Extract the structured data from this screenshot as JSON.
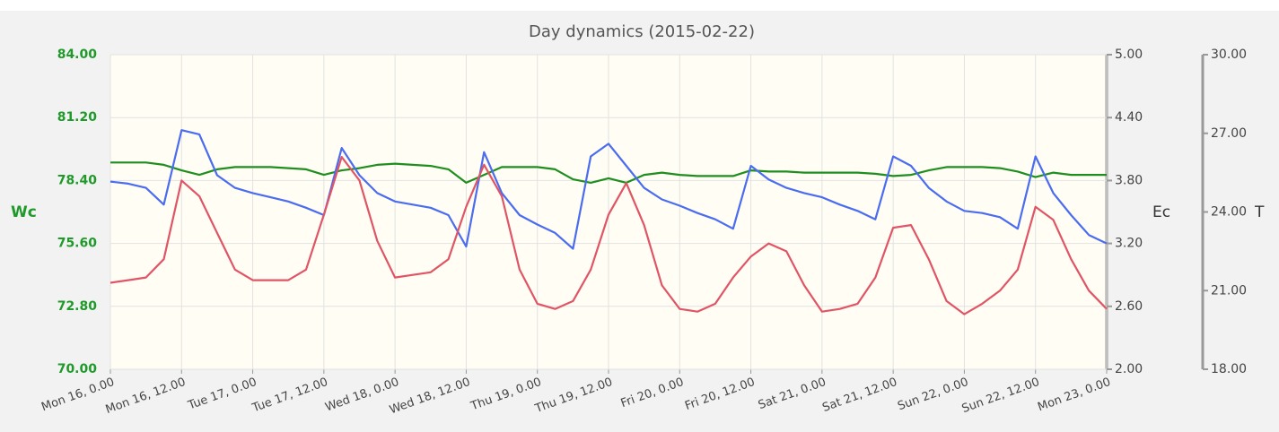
{
  "chart_data": {
    "type": "line",
    "title": "Day dynamics (2015-02-22)",
    "y_label": "Wc",
    "y2_label": "Ec",
    "y3_label": "T",
    "x": [
      0,
      3,
      6,
      9,
      12,
      15,
      18,
      21,
      24,
      27,
      30,
      33,
      36,
      39,
      42,
      45,
      48,
      51,
      54,
      57,
      60,
      63,
      66,
      69,
      72,
      75,
      78,
      81,
      84,
      87,
      90,
      93,
      96,
      99,
      102,
      105,
      108,
      111,
      114,
      117,
      120,
      123,
      126,
      129,
      132,
      135,
      138,
      141,
      144,
      147,
      150,
      153,
      156,
      159,
      162,
      165,
      168
    ],
    "xlim": [
      0,
      168
    ],
    "xticks": [
      {
        "value": 0,
        "label": "Mon 16, 0.00"
      },
      {
        "value": 12,
        "label": "Mon 16, 12.00"
      },
      {
        "value": 24,
        "label": "Tue 17, 0.00"
      },
      {
        "value": 36,
        "label": "Tue 17, 12.00"
      },
      {
        "value": 48,
        "label": "Wed 18, 0.00"
      },
      {
        "value": 60,
        "label": "Wed 18, 12.00"
      },
      {
        "value": 72,
        "label": "Thu 19, 0.00"
      },
      {
        "value": 84,
        "label": "Thu 19, 12.00"
      },
      {
        "value": 96,
        "label": "Fri 20, 0.00"
      },
      {
        "value": 108,
        "label": "Fri 20, 12.00"
      },
      {
        "value": 120,
        "label": "Sat 21, 0.00"
      },
      {
        "value": 132,
        "label": "Sat 21, 12.00"
      },
      {
        "value": 144,
        "label": "Sun 22, 0.00"
      },
      {
        "value": 156,
        "label": "Sun 22, 12.00"
      },
      {
        "value": 168,
        "label": "Mon 23, 0.00"
      }
    ],
    "ylim": [
      70,
      84
    ],
    "yticks": [
      {
        "value": 70,
        "label": "70.00"
      },
      {
        "value": 72.8,
        "label": "72.80"
      },
      {
        "value": 75.6,
        "label": "75.60"
      },
      {
        "value": 78.4,
        "label": "78.40"
      },
      {
        "value": 81.2,
        "label": "81.20"
      },
      {
        "value": 84,
        "label": "84.00"
      }
    ],
    "y2lim": [
      2,
      5
    ],
    "y2ticks": [
      {
        "value": 2,
        "label": "2.00"
      },
      {
        "value": 2.6,
        "label": "2.60"
      },
      {
        "value": 3.2,
        "label": "3.20"
      },
      {
        "value": 3.8,
        "label": "3.80"
      },
      {
        "value": 4.4,
        "label": "4.40"
      },
      {
        "value": 5,
        "label": "5.00"
      }
    ],
    "y3lim": [
      18,
      30
    ],
    "y3ticks": [
      {
        "value": 18,
        "label": "18.00"
      },
      {
        "value": 21,
        "label": "21.00"
      },
      {
        "value": 24,
        "label": "24.00"
      },
      {
        "value": 27,
        "label": "27.00"
      },
      {
        "value": 30,
        "label": "30.00"
      }
    ],
    "grid": true,
    "series": [
      {
        "color": "#1e8f1e",
        "axis": "y",
        "values": [
          79.2,
          79.2,
          79.2,
          79.1,
          78.85,
          78.65,
          78.9,
          79.0,
          79.0,
          79.0,
          78.95,
          78.9,
          78.65,
          78.85,
          78.95,
          79.1,
          79.15,
          79.1,
          79.05,
          78.9,
          78.3,
          78.65,
          79.0,
          79.0,
          79.0,
          78.9,
          78.45,
          78.3,
          78.5,
          78.3,
          78.65,
          78.75,
          78.65,
          78.6,
          78.6,
          78.6,
          78.85,
          78.8,
          78.8,
          78.75,
          78.75,
          78.75,
          78.75,
          78.7,
          78.6,
          78.65,
          78.85,
          79.0,
          79.0,
          79.0,
          78.95,
          78.8,
          78.55,
          78.75,
          78.65,
          78.65,
          78.65
        ]
      },
      {
        "color": "#4a6cf0",
        "axis": "y2",
        "values": [
          3.79,
          3.77,
          3.73,
          3.57,
          4.28,
          4.24,
          3.85,
          3.73,
          3.68,
          3.64,
          3.6,
          3.54,
          3.47,
          4.11,
          3.85,
          3.68,
          3.6,
          3.57,
          3.54,
          3.47,
          3.17,
          4.07,
          3.68,
          3.47,
          3.38,
          3.3,
          3.15,
          4.03,
          4.15,
          3.94,
          3.73,
          3.62,
          3.56,
          3.49,
          3.43,
          3.34,
          3.94,
          3.81,
          3.73,
          3.68,
          3.64,
          3.57,
          3.51,
          3.43,
          4.03,
          3.94,
          3.73,
          3.6,
          3.51,
          3.49,
          3.45,
          3.34,
          4.03,
          3.68,
          3.47,
          3.28,
          3.2
        ]
      },
      {
        "color": "#e05565",
        "axis": "y3",
        "values": [
          21.3,
          21.4,
          21.5,
          22.2,
          25.2,
          24.6,
          23.2,
          21.8,
          21.4,
          21.4,
          21.4,
          21.8,
          23.9,
          26.1,
          25.2,
          22.9,
          21.5,
          21.6,
          21.7,
          22.2,
          24.2,
          25.8,
          24.6,
          21.8,
          20.5,
          20.3,
          20.6,
          21.8,
          23.9,
          25.1,
          23.5,
          21.2,
          20.3,
          20.2,
          20.5,
          21.5,
          22.3,
          22.8,
          22.5,
          21.2,
          20.2,
          20.3,
          20.5,
          21.5,
          23.4,
          23.5,
          22.2,
          20.6,
          20.1,
          20.5,
          21.0,
          21.8,
          24.2,
          23.7,
          22.2,
          21.0,
          20.3
        ]
      }
    ]
  }
}
